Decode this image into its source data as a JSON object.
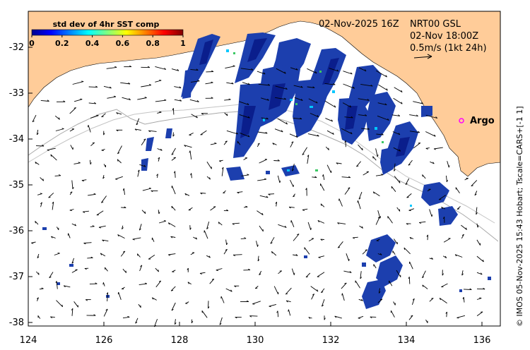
{
  "header": {
    "date_label": "02-Nov-2025 16Z",
    "product": "NRT00 GSL",
    "valid_time": "02-Nov 18:00Z",
    "vector_scale": "0.5m/s (1kt 24h)"
  },
  "colorbar": {
    "title": "std dev of 4hr SST comp",
    "ticks": [
      "0",
      "0.2",
      "0.4",
      "0.6",
      "0.8",
      "1"
    ]
  },
  "axes": {
    "lon_ticks": [
      "124",
      "126",
      "128",
      "130",
      "132",
      "134",
      "136"
    ],
    "lat_ticks": [
      "-32",
      "-33",
      "-34",
      "-35",
      "-36",
      "-37",
      "-38"
    ]
  },
  "marker": {
    "label": "Argo",
    "color": "#ff00ff"
  },
  "credit": "© IMOS 05-Nov-2025 15:43 Hobart; Tscale=CARS+[-1 1]",
  "colors": {
    "land": "#ffcc99",
    "sst_high": "#1c3fae",
    "sst_mid": "#0a1e8c",
    "sst_low": "#00c8ff"
  }
}
